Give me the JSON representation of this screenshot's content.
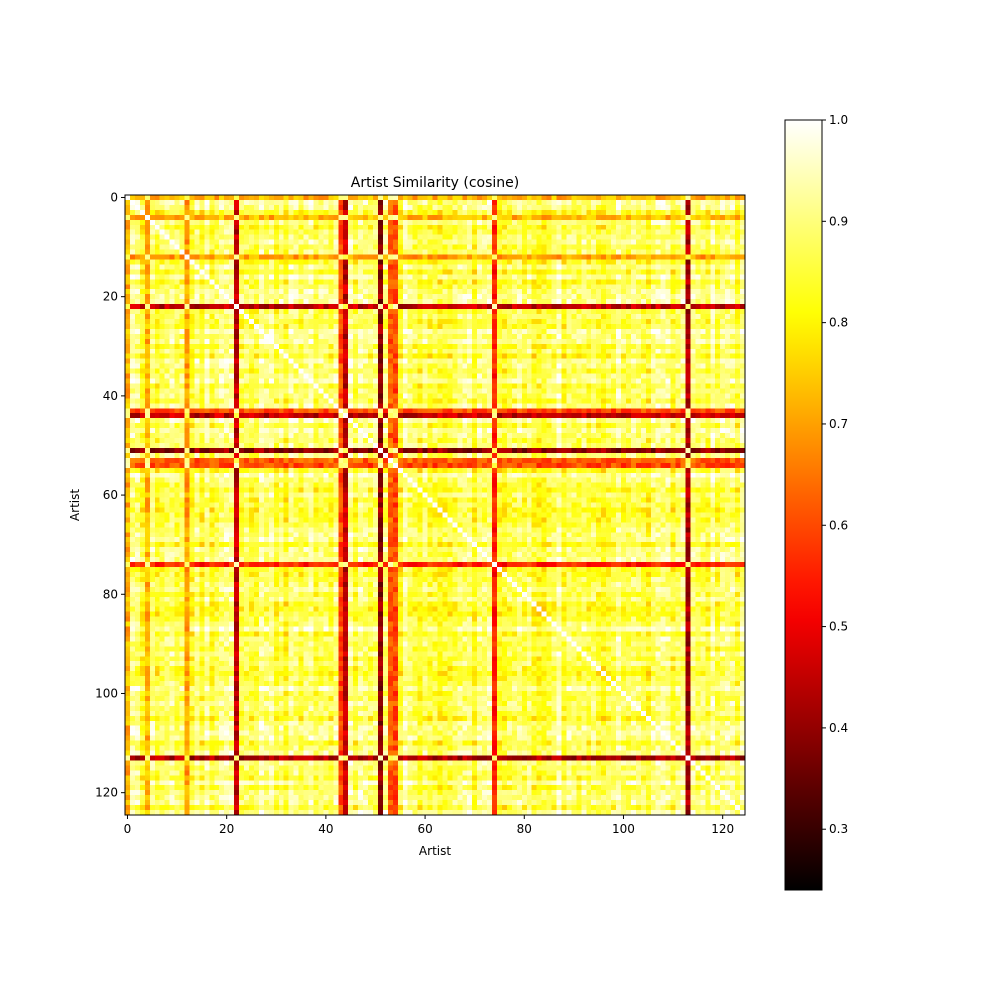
{
  "chart_data": {
    "type": "heatmap",
    "title": "Artist Similarity (cosine)",
    "xlabel": "Artist",
    "ylabel": "Artist",
    "n": 125,
    "x_ticks": [
      0,
      20,
      40,
      60,
      80,
      100,
      120
    ],
    "y_ticks": [
      0,
      20,
      40,
      60,
      80,
      100,
      120
    ],
    "colormap": "hot",
    "vmin": 0.24,
    "vmax": 1.0,
    "colorbar_ticks": [
      "0.3",
      "0.4",
      "0.5",
      "0.6",
      "0.7",
      "0.8",
      "0.9",
      "1.0"
    ],
    "colorbar_tick_values": [
      0.3,
      0.4,
      0.5,
      0.6,
      0.7,
      0.8,
      0.9,
      1.0
    ],
    "diagonal_value": 1.0,
    "baseline_similarity": 0.88,
    "low_similarity_artists": [
      {
        "index": 0,
        "level": 0.72
      },
      {
        "index": 4,
        "level": 0.72
      },
      {
        "index": 12,
        "level": 0.7
      },
      {
        "index": 22,
        "level": 0.45
      },
      {
        "index": 43,
        "level": 0.6
      },
      {
        "index": 44,
        "level": 0.45
      },
      {
        "index": 51,
        "level": 0.4
      },
      {
        "index": 53,
        "level": 0.62
      },
      {
        "index": 54,
        "level": 0.6
      },
      {
        "index": 74,
        "level": 0.55
      },
      {
        "index": 113,
        "level": 0.42
      }
    ]
  }
}
